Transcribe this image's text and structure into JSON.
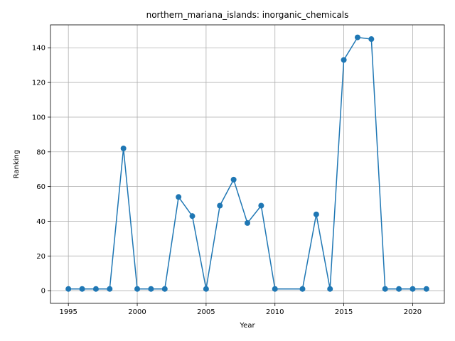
{
  "chart_data": {
    "type": "line",
    "title": "northern_mariana_islands: inorganic_chemicals",
    "xlabel": "Year",
    "ylabel": "Ranking",
    "xlim": [
      1993.7,
      2022.3
    ],
    "ylim": [
      -7.3,
      153.2
    ],
    "x_ticks": [
      1995,
      2000,
      2005,
      2010,
      2015,
      2020
    ],
    "y_ticks": [
      0,
      20,
      40,
      60,
      80,
      100,
      120,
      140
    ],
    "grid": true,
    "series": [
      {
        "color": "#1f77b4",
        "marker": "circle",
        "x": [
          1995,
          1996,
          1997,
          1998,
          1999,
          2000,
          2001,
          2002,
          2003,
          2004,
          2005,
          2006,
          2007,
          2008,
          2009,
          2010,
          2012,
          2013,
          2014,
          2015,
          2016,
          2017,
          2018,
          2019,
          2020,
          2021
        ],
        "y": [
          1,
          1,
          1,
          1,
          82,
          1,
          1,
          1,
          54,
          43,
          1,
          49,
          64,
          39,
          49,
          1,
          1,
          44,
          1,
          133,
          146,
          145,
          1,
          1,
          1,
          1
        ]
      }
    ]
  }
}
